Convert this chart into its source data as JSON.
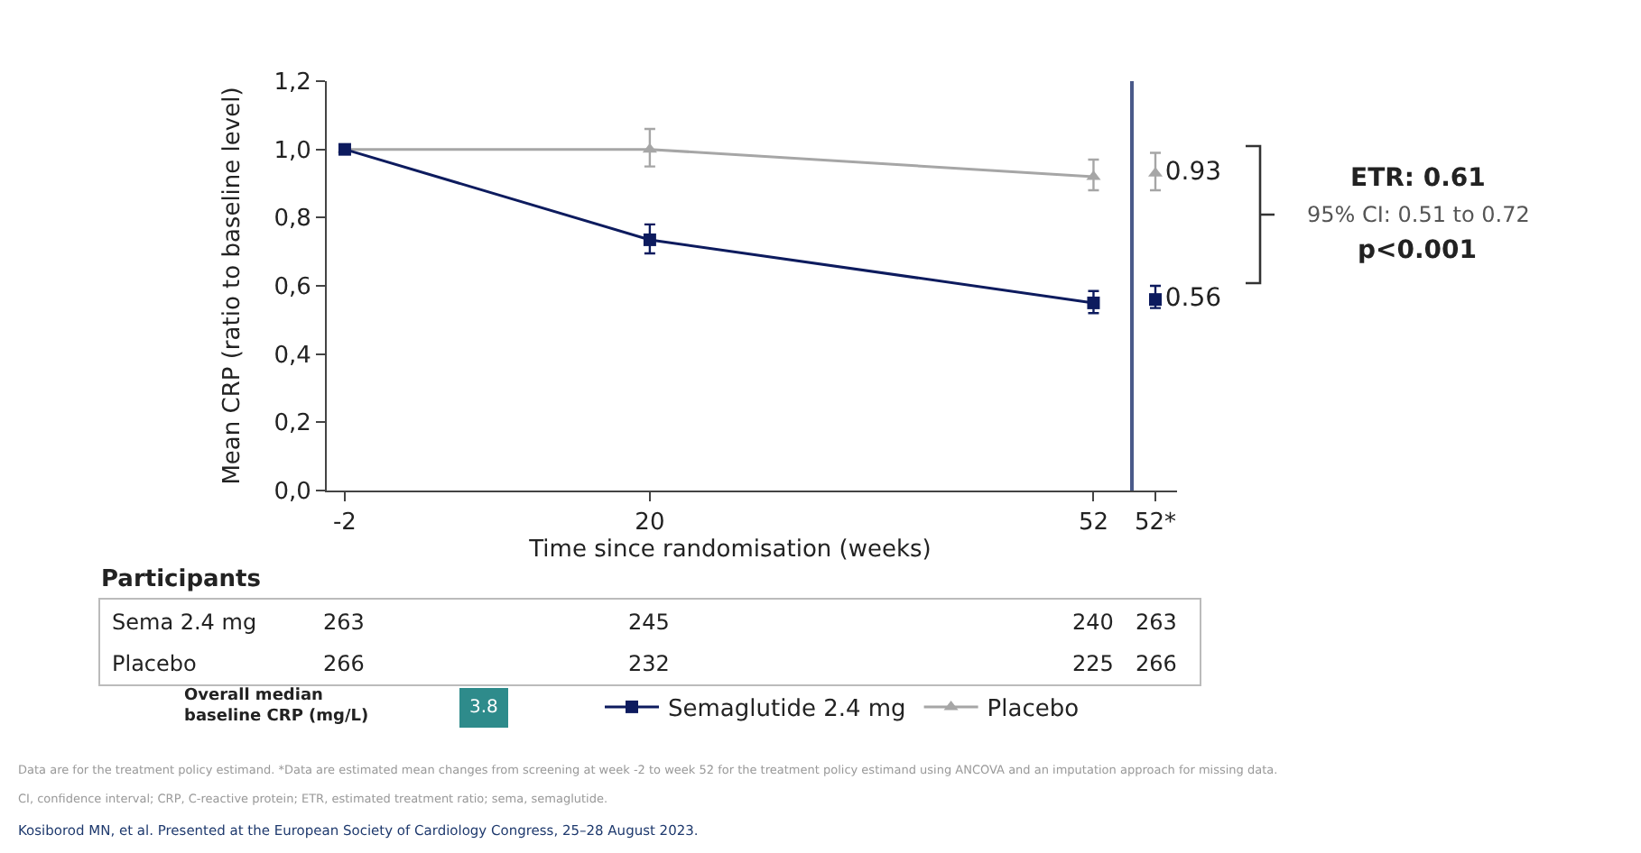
{
  "chart_data": [
    {
      "type": "line",
      "xlabel": "Time since randomisation (weeks)",
      "ylabel": "Mean CRP (ratio to baseline level)",
      "xlim": [
        -3.3,
        54.9
      ],
      "xticks": [
        -2,
        20,
        52
      ],
      "ylim": [
        0,
        1.2
      ],
      "yticks": [
        {
          "value": 0,
          "label": "0,0"
        },
        {
          "value": 0.2,
          "label": "0,2"
        },
        {
          "value": 0.4,
          "label": "0,4"
        },
        {
          "value": 0.6,
          "label": "0,6"
        },
        {
          "value": 0.8,
          "label": "0,8"
        },
        {
          "value": 1.0,
          "label": "1,0"
        },
        {
          "value": 1.2,
          "label": "1,2"
        }
      ],
      "legend": "bottom",
      "series": [
        {
          "name": "Placebo",
          "color": "#a6a6a6",
          "marker": "triangle",
          "x": [
            -2,
            20,
            52
          ],
          "values": [
            1.0,
            1.0,
            0.92
          ],
          "errors": [
            null,
            [
              0.95,
              1.06
            ],
            [
              0.88,
              0.97
            ]
          ]
        },
        {
          "name": "Semaglutide 2.4 mg",
          "color": "#0d1b5e",
          "marker": "square",
          "x": [
            -2,
            20,
            52
          ],
          "values": [
            1.0,
            0.735,
            0.55
          ],
          "errors": [
            null,
            [
              0.695,
              0.78
            ],
            [
              0.52,
              0.585
            ]
          ]
        }
      ],
      "annotations": [
        "ETR: 0.61",
        "95% CI: 0.51 to 0.72",
        "p<0.001",
        "Participants",
        "Sema 2.4 mg",
        "263",
        "245",
        "240",
        "263",
        "Placebo",
        "266",
        "232",
        "225",
        "266",
        "Overall median baseline CRP (mg/L)",
        "3.8",
        "Data are for the treatment policy estimand. *Data are estimated mean changes from screening at week -2 to week 52 for the treatment policy estimand using ANCOVA and an imputation approach for missing data.",
        "CI, confidence interval; CRP, C-reactive protein; ETR, estimated treatment ratio; sema, semaglutide.",
        "Kosiborod MN, et al. Presented at the European Society of Cardiology Congress, 25–28 August 2023."
      ]
    },
    {
      "type": "scatter",
      "categories": [
        "52*"
      ],
      "ylim": [
        0,
        1.2
      ],
      "tick_labels": "x",
      "series": [
        {
          "color": "#a6a6a6",
          "marker": "triangle",
          "values": [
            0.93
          ],
          "errors": [
            [
              0.88,
              0.99
            ]
          ],
          "value_labels": [
            "0.93"
          ]
        },
        {
          "color": "#0d1b5e",
          "marker": "square",
          "values": [
            0.56
          ],
          "errors": [
            [
              0.535,
              0.6
            ]
          ],
          "value_labels": [
            "0.56"
          ]
        }
      ]
    }
  ]
}
